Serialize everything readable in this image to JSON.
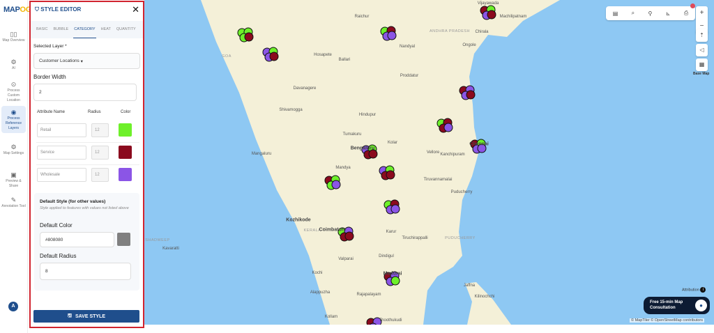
{
  "app": {
    "logo": "MAP",
    "logo_accent": "OG"
  },
  "sidebar": {
    "items": [
      {
        "label": "Map Overview",
        "icon": "map-icon",
        "active": false
      },
      {
        "label": "AI",
        "icon": "ai-gear-icon",
        "active": false
      },
      {
        "label": "Process Custom Location",
        "icon": "location-pin-icon",
        "active": false
      },
      {
        "label": "Process Reference Layers",
        "icon": "layers-icon",
        "active": true
      },
      {
        "label": "Map Settings",
        "icon": "settings-icon",
        "active": false
      },
      {
        "label": "Preview & Share",
        "icon": "preview-icon",
        "active": false
      },
      {
        "label": "Annotation Tool",
        "icon": "annotation-icon",
        "active": false
      }
    ],
    "avatar": "A"
  },
  "panel": {
    "title": "STYLE EDITOR",
    "close": "✕",
    "tabs": [
      {
        "label": "BASIC"
      },
      {
        "label": "BUBBLE"
      },
      {
        "label": "CATEGORY",
        "active": true
      },
      {
        "label": "HEAT"
      },
      {
        "label": "QUANTITY"
      }
    ],
    "selected_layer_label": "Selected Layer *",
    "selected_layer": "Customer Locations",
    "border_width_label": "Border Width",
    "border_width": "2",
    "columns": {
      "name": "Attribute Name",
      "radius": "Radius",
      "color": "Color"
    },
    "categories": [
      {
        "name": "Retail",
        "radius": "12",
        "color": "#6ef02a"
      },
      {
        "name": "Service",
        "radius": "12",
        "color": "#8b0a1e"
      },
      {
        "name": "Wholesale",
        "radius": "12",
        "color": "#8b55e6"
      }
    ],
    "default": {
      "title": "Default Style (for other values)",
      "note": "Style applied to features with values not listed above",
      "color_label": "Default Color",
      "color": "#808080",
      "radius_label": "Default Radius",
      "radius": "8"
    },
    "save_label": "SAVE STYLE"
  },
  "map": {
    "colors": {
      "land": "#f4f0d8",
      "sea": "#8ec8f3"
    },
    "cities": [
      [
        "Raichur",
        ""
      ],
      [
        "Hosapete",
        ""
      ],
      [
        "Ballari",
        ""
      ],
      [
        "Nandyal",
        "small"
      ],
      [
        "Proddatur",
        ""
      ],
      [
        "Davanagere",
        ""
      ],
      [
        "Shivamogga",
        ""
      ],
      [
        "Hindupur",
        "small"
      ],
      [
        "Tumakuru",
        ""
      ],
      [
        "Kolar",
        ""
      ],
      [
        "Bengaluru",
        "big"
      ],
      [
        "Mangaluru",
        ""
      ],
      [
        "Mandya",
        ""
      ],
      [
        "Kozhikode",
        "big"
      ],
      [
        "KERALA",
        "region"
      ],
      [
        "Coimbatore",
        "big"
      ],
      [
        "Karur",
        ""
      ],
      [
        "Tiruchirappalli",
        ""
      ],
      [
        "Valparai",
        "small"
      ],
      [
        "Dindigul",
        ""
      ],
      [
        "Madurai",
        "big"
      ],
      [
        "Kochi",
        ""
      ],
      [
        "Alappuzha",
        ""
      ],
      [
        "Rajapalayam",
        "small"
      ],
      [
        "Kollam",
        ""
      ],
      [
        "Thoothukudi",
        ""
      ],
      [
        "Vijayawada",
        ""
      ],
      [
        "Machilipatnam",
        ""
      ],
      [
        "ANDHRA PRADESH",
        "region"
      ],
      [
        "Chirala",
        "small"
      ],
      [
        "Ongole",
        ""
      ],
      [
        "Vellore",
        ""
      ],
      [
        "Kanchipuram",
        ""
      ],
      [
        "Tiruvannamalai",
        "small"
      ],
      [
        "Puducherry",
        ""
      ],
      [
        "PUDUCHERRY",
        "region"
      ],
      [
        "Jaffna",
        ""
      ],
      [
        "Kilinochchi",
        ""
      ],
      [
        "Chennai",
        "big"
      ],
      [
        "Kavaratti",
        "small"
      ],
      [
        "LAKSHADWEEP",
        "region"
      ],
      [
        "GOA",
        "region"
      ]
    ],
    "toolbar": [
      "legend-icon",
      "search-icon",
      "pin-icon",
      "measure-icon",
      "print-icon"
    ],
    "zoom_in": "+",
    "zoom_out": "−",
    "compass": "⇡",
    "locate": "◁",
    "basemap_label": "Base Map",
    "attribution": "Attribution",
    "consult": "Free 15-min Map Consultation",
    "credits": "© MapTiler © OpenStreetMap contributors"
  }
}
